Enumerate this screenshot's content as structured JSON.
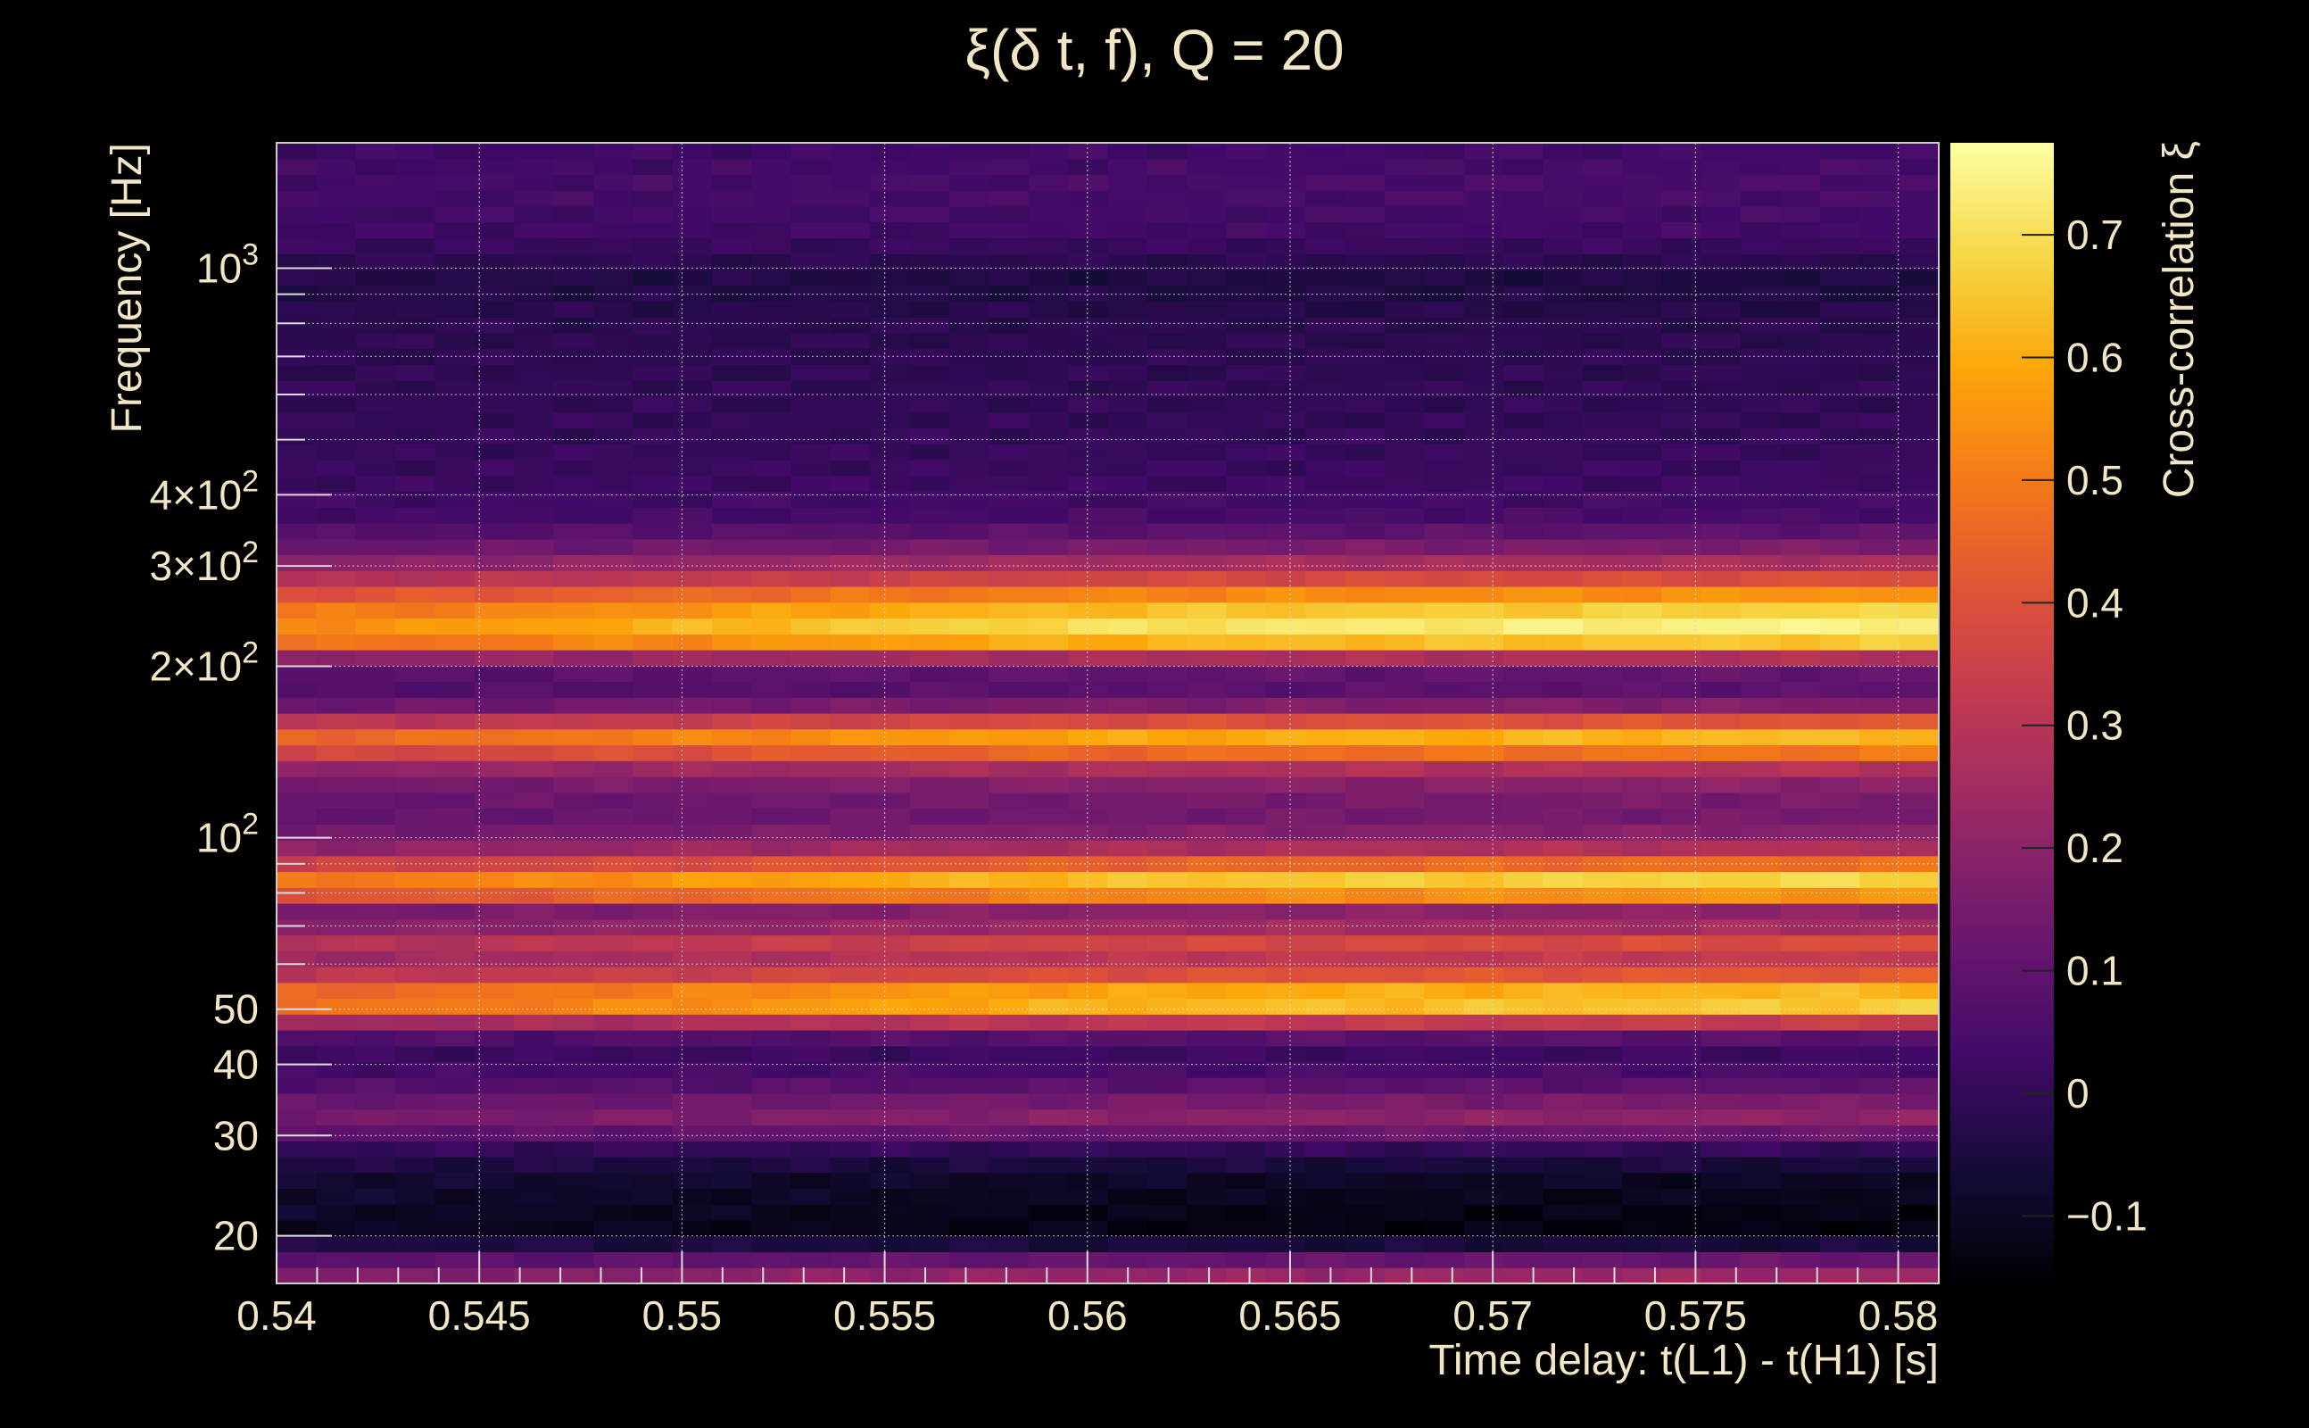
{
  "chart_data": {
    "type": "heatmap",
    "title": "ξ(δ t, f), Q = 20",
    "xlabel": "Time delay: t(L1) - t(H1) [s]",
    "ylabel": "Frequency [Hz]",
    "colorbar_label": "Cross-correlation ξ",
    "xlim": [
      0.54,
      0.581
    ],
    "ylim": [
      16.5,
      1660
    ],
    "yscale": "log",
    "clim": [
      -0.155,
      0.775
    ],
    "grid": true,
    "x_ticks": [
      {
        "value": 0.54,
        "label": "0.54"
      },
      {
        "value": 0.545,
        "label": "0.545"
      },
      {
        "value": 0.55,
        "label": "0.55"
      },
      {
        "value": 0.555,
        "label": "0.555"
      },
      {
        "value": 0.56,
        "label": "0.56"
      },
      {
        "value": 0.565,
        "label": "0.565"
      },
      {
        "value": 0.57,
        "label": "0.57"
      },
      {
        "value": 0.575,
        "label": "0.575"
      },
      {
        "value": 0.58,
        "label": "0.58"
      }
    ],
    "y_ticks": [
      {
        "value": 20,
        "label": "20"
      },
      {
        "value": 30,
        "label": "30"
      },
      {
        "value": 40,
        "label": "40"
      },
      {
        "value": 50,
        "label": "50"
      },
      {
        "value": 100,
        "base": "10",
        "exp": "2"
      },
      {
        "value": 200,
        "base": "2×10",
        "exp": "2"
      },
      {
        "value": 300,
        "base": "3×10",
        "exp": "2"
      },
      {
        "value": 400,
        "base": "4×10",
        "exp": "2"
      },
      {
        "value": 1000,
        "base": "10",
        "exp": "3"
      }
    ],
    "colorbar_ticks": [
      {
        "value": -0.1,
        "label": "−0.1"
      },
      {
        "value": 0,
        "label": "0"
      },
      {
        "value": 0.1,
        "label": "0.1"
      },
      {
        "value": 0.2,
        "label": "0.2"
      },
      {
        "value": 0.3,
        "label": "0.3"
      },
      {
        "value": 0.4,
        "label": "0.4"
      },
      {
        "value": 0.5,
        "label": "0.5"
      },
      {
        "value": 0.6,
        "label": "0.6"
      },
      {
        "value": 0.7,
        "label": "0.7"
      }
    ],
    "x_columns": 42,
    "time_trend": [
      {
        "x": 0.54,
        "f": 0.72
      },
      {
        "x": 0.545,
        "f": 0.76
      },
      {
        "x": 0.55,
        "f": 0.82
      },
      {
        "x": 0.555,
        "f": 0.88
      },
      {
        "x": 0.56,
        "f": 0.93
      },
      {
        "x": 0.565,
        "f": 0.96
      },
      {
        "x": 0.57,
        "f": 0.97
      },
      {
        "x": 0.575,
        "f": 0.99
      },
      {
        "x": 0.58,
        "f": 1.0
      }
    ],
    "frequency_profile": [
      {
        "f": 16.5,
        "xi": 0.2
      },
      {
        "f": 17.5,
        "xi": 0.26
      },
      {
        "f": 18.5,
        "xi": 0.05
      },
      {
        "f": 20,
        "xi": -0.14
      },
      {
        "f": 22,
        "xi": -0.13
      },
      {
        "f": 25,
        "xi": -0.1
      },
      {
        "f": 28,
        "xi": -0.03
      },
      {
        "f": 31,
        "xi": 0.17
      },
      {
        "f": 33,
        "xi": 0.22
      },
      {
        "f": 35,
        "xi": 0.14
      },
      {
        "f": 38,
        "xi": 0.06
      },
      {
        "f": 42,
        "xi": 0.02
      },
      {
        "f": 46,
        "xi": 0.12
      },
      {
        "f": 49,
        "xi": 0.55
      },
      {
        "f": 52,
        "xi": 0.75
      },
      {
        "f": 56,
        "xi": 0.5
      },
      {
        "f": 60,
        "xi": 0.3
      },
      {
        "f": 65,
        "xi": 0.4
      },
      {
        "f": 70,
        "xi": 0.25
      },
      {
        "f": 75,
        "xi": 0.2
      },
      {
        "f": 82,
        "xi": 0.78
      },
      {
        "f": 88,
        "xi": 0.55
      },
      {
        "f": 95,
        "xi": 0.3
      },
      {
        "f": 105,
        "xi": 0.15
      },
      {
        "f": 115,
        "xi": 0.15
      },
      {
        "f": 125,
        "xi": 0.2
      },
      {
        "f": 135,
        "xi": 0.32
      },
      {
        "f": 148,
        "xi": 0.68
      },
      {
        "f": 160,
        "xi": 0.42
      },
      {
        "f": 172,
        "xi": 0.15
      },
      {
        "f": 190,
        "xi": 0.05
      },
      {
        "f": 210,
        "xi": 0.32
      },
      {
        "f": 225,
        "xi": 0.78
      },
      {
        "f": 245,
        "xi": 0.72
      },
      {
        "f": 265,
        "xi": 0.58
      },
      {
        "f": 290,
        "xi": 0.35
      },
      {
        "f": 320,
        "xi": 0.18
      },
      {
        "f": 360,
        "xi": 0.05
      },
      {
        "f": 420,
        "xi": 0.02
      },
      {
        "f": 520,
        "xi": 0.0
      },
      {
        "f": 650,
        "xi": -0.01
      },
      {
        "f": 800,
        "xi": -0.02
      },
      {
        "f": 950,
        "xi": -0.05
      },
      {
        "f": 1150,
        "xi": 0.03
      },
      {
        "f": 1400,
        "xi": 0.05
      },
      {
        "f": 1660,
        "xi": 0.03
      }
    ]
  }
}
